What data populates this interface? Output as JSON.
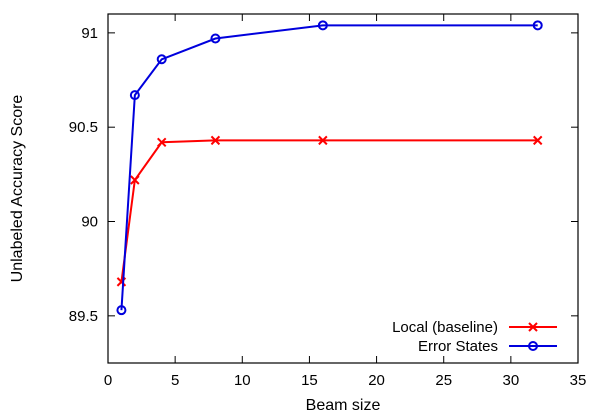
{
  "chart_data": {
    "type": "line",
    "xlabel": "Beam size",
    "ylabel": "Unlabeled Accuracy Score",
    "xlim": [
      0,
      35
    ],
    "ylim": [
      89.25,
      91.1
    ],
    "xticks": [
      0,
      5,
      10,
      15,
      20,
      25,
      30,
      35
    ],
    "yticks": [
      89.5,
      90,
      90.5,
      91
    ],
    "xtick_labels": [
      "0",
      "5",
      "10",
      "15",
      "20",
      "25",
      "30",
      "35"
    ],
    "ytick_labels": [
      "89.5",
      "90",
      "90.5",
      "91"
    ],
    "grid": false,
    "legend_position": "bottom-right",
    "series": [
      {
        "name": "Local (baseline)",
        "color": "#ff0000",
        "marker": "x",
        "x": [
          1,
          2,
          4,
          8,
          16,
          32
        ],
        "y": [
          89.68,
          90.22,
          90.42,
          90.43,
          90.43,
          90.43
        ]
      },
      {
        "name": "Error States",
        "color": "#0000dd",
        "marker": "circle",
        "x": [
          1,
          2,
          4,
          8,
          16,
          32
        ],
        "y": [
          89.53,
          90.67,
          90.86,
          90.97,
          91.04,
          91.04
        ]
      }
    ]
  }
}
